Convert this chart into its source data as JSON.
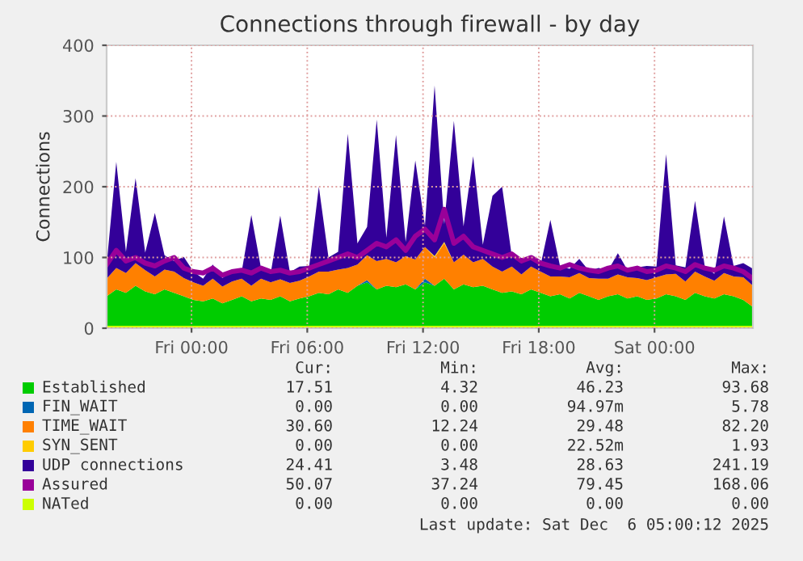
{
  "chart_data": {
    "type": "area",
    "title": "Connections through firewall - by day",
    "ylabel": "Connections",
    "stacked": true,
    "legend": "bottom",
    "grid": true,
    "x": [
      "2025-12-04T19:36",
      "2025-12-04T20:06",
      "2025-12-04T20:36",
      "2025-12-04T21:06",
      "2025-12-04T21:36",
      "2025-12-04T22:06",
      "2025-12-04T22:36",
      "2025-12-04T23:06",
      "2025-12-04T23:36",
      "2025-12-05T00:06",
      "2025-12-05T00:36",
      "2025-12-05T01:06",
      "2025-12-05T01:36",
      "2025-12-05T02:06",
      "2025-12-05T02:36",
      "2025-12-05T03:06",
      "2025-12-05T03:36",
      "2025-12-05T04:06",
      "2025-12-05T04:36",
      "2025-12-05T05:06",
      "2025-12-05T05:36",
      "2025-12-05T06:06",
      "2025-12-05T06:36",
      "2025-12-05T07:06",
      "2025-12-05T07:36",
      "2025-12-05T08:06",
      "2025-12-05T08:36",
      "2025-12-05T09:06",
      "2025-12-05T09:36",
      "2025-12-05T10:06",
      "2025-12-05T10:36",
      "2025-12-05T11:06",
      "2025-12-05T11:36",
      "2025-12-05T12:06",
      "2025-12-05T12:36",
      "2025-12-05T13:06",
      "2025-12-05T13:36",
      "2025-12-05T14:06",
      "2025-12-05T14:36",
      "2025-12-05T15:06",
      "2025-12-05T15:36",
      "2025-12-05T16:06",
      "2025-12-05T16:36",
      "2025-12-05T17:06",
      "2025-12-05T17:36",
      "2025-12-05T18:06",
      "2025-12-05T18:36",
      "2025-12-05T19:06",
      "2025-12-05T19:36",
      "2025-12-05T20:06",
      "2025-12-05T20:36",
      "2025-12-05T21:06",
      "2025-12-05T21:36",
      "2025-12-05T22:06",
      "2025-12-05T22:36",
      "2025-12-05T23:06",
      "2025-12-05T23:36",
      "2025-12-06T00:06",
      "2025-12-06T00:36",
      "2025-12-06T01:06",
      "2025-12-06T01:36",
      "2025-12-06T02:06",
      "2025-12-06T02:36",
      "2025-12-06T03:06",
      "2025-12-06T03:36",
      "2025-12-06T04:06",
      "2025-12-06T04:36",
      "2025-12-06T05:06"
    ],
    "xlim": [
      "2025-12-04T19:36",
      "2025-12-06T05:06"
    ],
    "xticks": [
      {
        "value": "2025-12-05T00:00",
        "label": "Fri 00:00"
      },
      {
        "value": "2025-12-05T06:00",
        "label": "Fri 06:00"
      },
      {
        "value": "2025-12-05T12:00",
        "label": "Fri 12:00"
      },
      {
        "value": "2025-12-05T18:00",
        "label": "Fri 18:00"
      },
      {
        "value": "2025-12-06T00:00",
        "label": "Sat 00:00"
      }
    ],
    "ylim": [
      0,
      400
    ],
    "yticks": [
      0,
      100,
      200,
      300,
      400
    ],
    "series": [
      {
        "name": "Established",
        "color": "#00cc00",
        "values": [
          45,
          55,
          50,
          60,
          52,
          48,
          55,
          50,
          45,
          40,
          38,
          42,
          35,
          40,
          45,
          38,
          42,
          40,
          45,
          38,
          42,
          45,
          50,
          48,
          55,
          50,
          60,
          65,
          55,
          60,
          58,
          62,
          55,
          65,
          60,
          70,
          55,
          62,
          58,
          60,
          55,
          50,
          52,
          48,
          55,
          50,
          45,
          48,
          42,
          50,
          45,
          40,
          45,
          48,
          42,
          45,
          40,
          42,
          48,
          45,
          40,
          50,
          45,
          42,
          48,
          45,
          40,
          30
        ]
      },
      {
        "name": "FIN_WAIT",
        "color": "#0066b3",
        "values": [
          0,
          0,
          0,
          0,
          0,
          0,
          0,
          0,
          0,
          0,
          0,
          0,
          0,
          0,
          0,
          0,
          0,
          0,
          0,
          0,
          0,
          0,
          0,
          0,
          0,
          0,
          0,
          3,
          0,
          0,
          0,
          0,
          0,
          5,
          0,
          0,
          0,
          0,
          0,
          0,
          0,
          0,
          0,
          0,
          0,
          0,
          0,
          0,
          0,
          0,
          0,
          0,
          0,
          0,
          0,
          0,
          0,
          0,
          0,
          0,
          0,
          0,
          0,
          0,
          0,
          0,
          0,
          0
        ]
      },
      {
        "name": "TIME_WAIT",
        "color": "#ff8000",
        "values": [
          25,
          30,
          28,
          32,
          30,
          25,
          28,
          30,
          26,
          25,
          22,
          28,
          24,
          26,
          25,
          22,
          28,
          25,
          24,
          26,
          25,
          28,
          30,
          32,
          28,
          35,
          30,
          35,
          40,
          38,
          35,
          40,
          42,
          45,
          40,
          50,
          38,
          42,
          35,
          38,
          32,
          30,
          35,
          28,
          32,
          30,
          28,
          25,
          30,
          28,
          26,
          30,
          25,
          28,
          30,
          26,
          28,
          30,
          28,
          32,
          26,
          30,
          28,
          25,
          30,
          28,
          32,
          30
        ]
      },
      {
        "name": "SYN_SENT",
        "color": "#ffcc00",
        "values": [
          0,
          0,
          0,
          0,
          0,
          0,
          0,
          0,
          0,
          0,
          0,
          0,
          0,
          0,
          0,
          0,
          0,
          0,
          0,
          0,
          0,
          0,
          0,
          0,
          0,
          0,
          0,
          0,
          0,
          0,
          0,
          0,
          0,
          0,
          2,
          2,
          0,
          0,
          0,
          0,
          0,
          0,
          0,
          0,
          0,
          0,
          0,
          0,
          0,
          0,
          0,
          0,
          0,
          0,
          0,
          0,
          0,
          0,
          0,
          0,
          0,
          0,
          0,
          0,
          0,
          0,
          0,
          0
        ]
      },
      {
        "name": "UDP connections",
        "color": "#330099",
        "values": [
          20,
          150,
          30,
          120,
          25,
          90,
          20,
          15,
          30,
          15,
          10,
          20,
          12,
          15,
          10,
          100,
          15,
          12,
          90,
          15,
          20,
          15,
          120,
          20,
          25,
          190,
          30,
          40,
          200,
          30,
          180,
          20,
          140,
          30,
          241,
          25,
          200,
          40,
          150,
          20,
          100,
          120,
          15,
          20,
          15,
          10,
          80,
          15,
          12,
          20,
          10,
          15,
          12,
          30,
          10,
          15,
          20,
          15,
          170,
          12,
          20,
          100,
          15,
          10,
          80,
          15,
          20,
          24
        ]
      },
      {
        "name": "Assured",
        "color": "#990099",
        "type": "line",
        "values": [
          90,
          110,
          95,
          100,
          92,
          88,
          95,
          100,
          85,
          80,
          78,
          85,
          75,
          80,
          82,
          78,
          85,
          80,
          82,
          78,
          80,
          85,
          90,
          95,
          100,
          105,
          100,
          110,
          120,
          115,
          125,
          110,
          130,
          140,
          125,
          168,
          120,
          130,
          115,
          110,
          105,
          100,
          105,
          95,
          100,
          92,
          88,
          85,
          90,
          85,
          82,
          80,
          85,
          88,
          82,
          85,
          80,
          82,
          88,
          85,
          80,
          90,
          85,
          82,
          88,
          85,
          80,
          70
        ]
      },
      {
        "name": "NATed",
        "color": "#ccff00",
        "type": "line",
        "values": [
          0,
          0,
          0,
          0,
          0,
          0,
          0,
          0,
          0,
          0,
          0,
          0,
          0,
          0,
          0,
          0,
          0,
          0,
          0,
          0,
          0,
          0,
          0,
          0,
          0,
          0,
          0,
          0,
          0,
          0,
          0,
          0,
          0,
          0,
          0,
          0,
          0,
          0,
          0,
          0,
          0,
          0,
          0,
          0,
          0,
          0,
          0,
          0,
          0,
          0,
          0,
          0,
          0,
          0,
          0,
          0,
          0,
          0,
          0,
          0,
          0,
          0,
          0,
          0,
          0,
          0,
          0,
          0
        ]
      }
    ],
    "annotations": [
      "Cur:",
      "Min:",
      "Avg:",
      "Max:",
      "17.51",
      "4.32",
      "46.23",
      "93.68",
      "0.00",
      "0.00",
      "94.97m",
      "5.78",
      "30.60",
      "12.24",
      "29.48",
      "82.20",
      "0.00",
      "0.00",
      "22.52m",
      "1.93",
      "24.41",
      "3.48",
      "28.63",
      "241.19",
      "50.07",
      "37.24",
      "79.45",
      "168.06",
      "0.00",
      "0.00",
      "0.00",
      "0.00",
      "Last update: Sat Dec  6 05:00:12 2025"
    ]
  }
}
